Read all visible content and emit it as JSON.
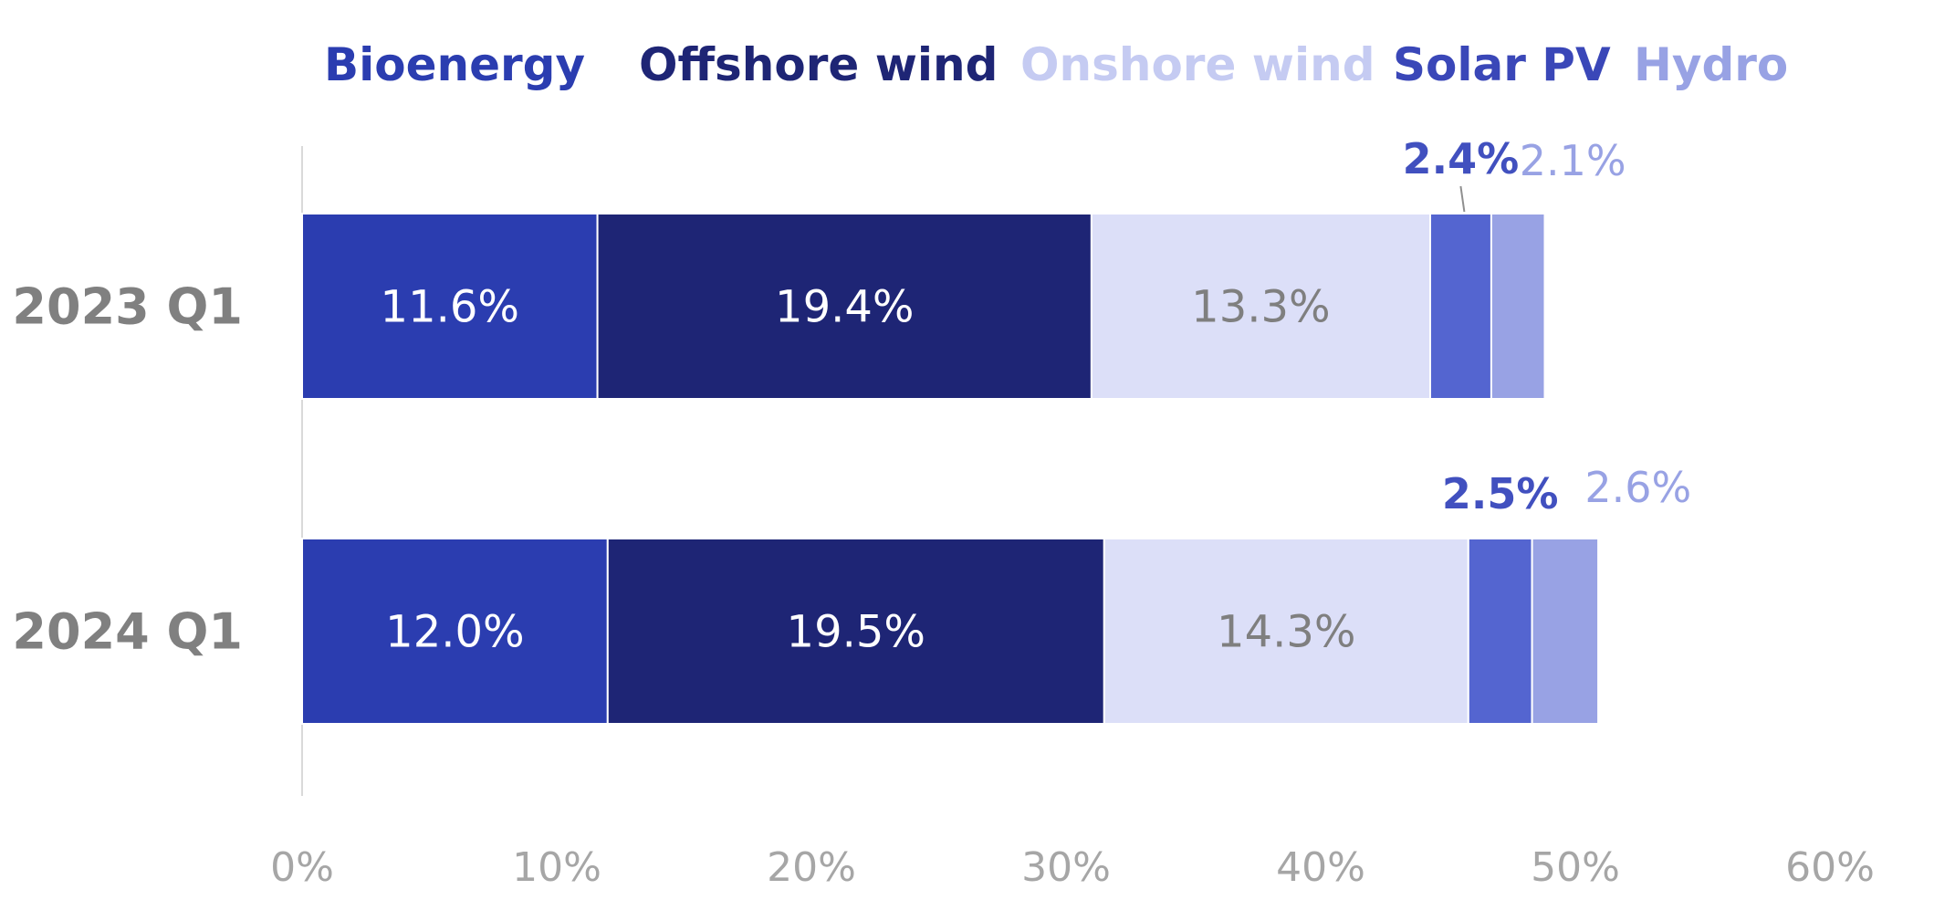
{
  "chart_data": {
    "type": "bar",
    "orientation": "horizontal",
    "stacked": true,
    "categories": [
      "2023 Q1",
      "2024 Q1"
    ],
    "series": [
      {
        "name": "Bioenergy",
        "values": [
          11.6,
          12.0
        ],
        "labels": [
          "11.6%",
          "12.0%"
        ],
        "color": "#2b3db0",
        "label_color": "#ffffff"
      },
      {
        "name": "Offshore wind",
        "values": [
          19.4,
          19.5
        ],
        "labels": [
          "19.4%",
          "19.5%"
        ],
        "color": "#1e2575",
        "label_color": "#ffffff"
      },
      {
        "name": "Onshore wind",
        "values": [
          13.3,
          14.3
        ],
        "labels": [
          "13.3%",
          "14.3%"
        ],
        "color": "#dcdff8",
        "label_color": "#7f7f7f"
      },
      {
        "name": "Solar PV",
        "values": [
          2.4,
          2.5
        ],
        "labels": [
          "2.4%",
          "2.5%"
        ],
        "color": "#5465d0",
        "label_color": "#4150bf"
      },
      {
        "name": "Hydro",
        "values": [
          2.1,
          2.6
        ],
        "labels": [
          "2.1%",
          "2.6%"
        ],
        "color": "#98a2e4",
        "label_color": "#98a2e4"
      }
    ],
    "legend_colors": [
      "#2b3db0",
      "#1e2575",
      "#c5cbf2",
      "#3a47b8",
      "#98a2e4"
    ],
    "xlim": [
      0,
      60
    ],
    "xticks": [
      0,
      10,
      20,
      30,
      40,
      50,
      60
    ],
    "xtick_labels": [
      "0%",
      "10%",
      "20%",
      "30%",
      "40%",
      "50%",
      "60%"
    ],
    "legend_position": "top",
    "grid": false,
    "title": "",
    "xlabel": "",
    "ylabel": ""
  }
}
